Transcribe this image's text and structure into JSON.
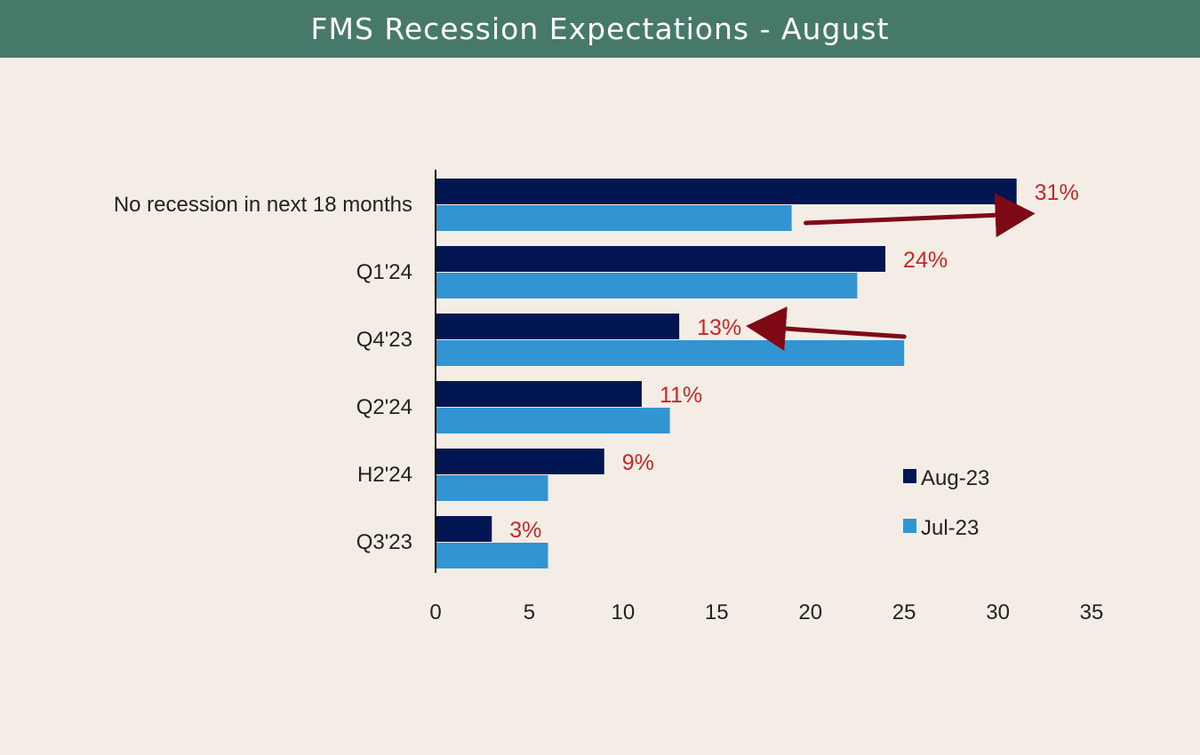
{
  "header": {
    "title": "FMS Recession Expectations - August"
  },
  "colors": {
    "header_bg": "#47796b",
    "aug": "#011552",
    "jul": "#3294d2",
    "annotation": "#c62828",
    "arrow": "#7d0a14"
  },
  "chart_data": {
    "type": "bar",
    "orientation": "horizontal",
    "title": "FMS Recession Expectations - August",
    "xlabel": "",
    "ylabel": "",
    "categories": [
      "No recession in next 18 months",
      "Q1'24",
      "Q4'23",
      "Q2'24",
      "H2'24",
      "Q3'23"
    ],
    "series": [
      {
        "name": "Aug-23",
        "values": [
          31,
          24,
          13,
          11,
          9,
          3
        ]
      },
      {
        "name": "Jul-23",
        "values": [
          19,
          22.5,
          25,
          12.5,
          6,
          6
        ]
      }
    ],
    "data_labels": [
      "31%",
      "24%",
      "13%",
      "11%",
      "9%",
      "3%"
    ],
    "xlim": [
      0,
      35
    ],
    "xticks": [
      0,
      5,
      10,
      15,
      20,
      25,
      30,
      35
    ],
    "grid": false,
    "legend": {
      "position": "bottom-right",
      "entries": [
        "Aug-23",
        "Jul-23"
      ]
    },
    "annotations": [
      {
        "type": "arrow",
        "from_category": "No recession in next 18 months",
        "direction": "rightward",
        "meaning": "increase from Jul-23 to Aug-23"
      },
      {
        "type": "arrow",
        "from_category": "Q4'23",
        "direction": "leftward",
        "meaning": "decrease from Jul-23 to Aug-23"
      }
    ]
  }
}
